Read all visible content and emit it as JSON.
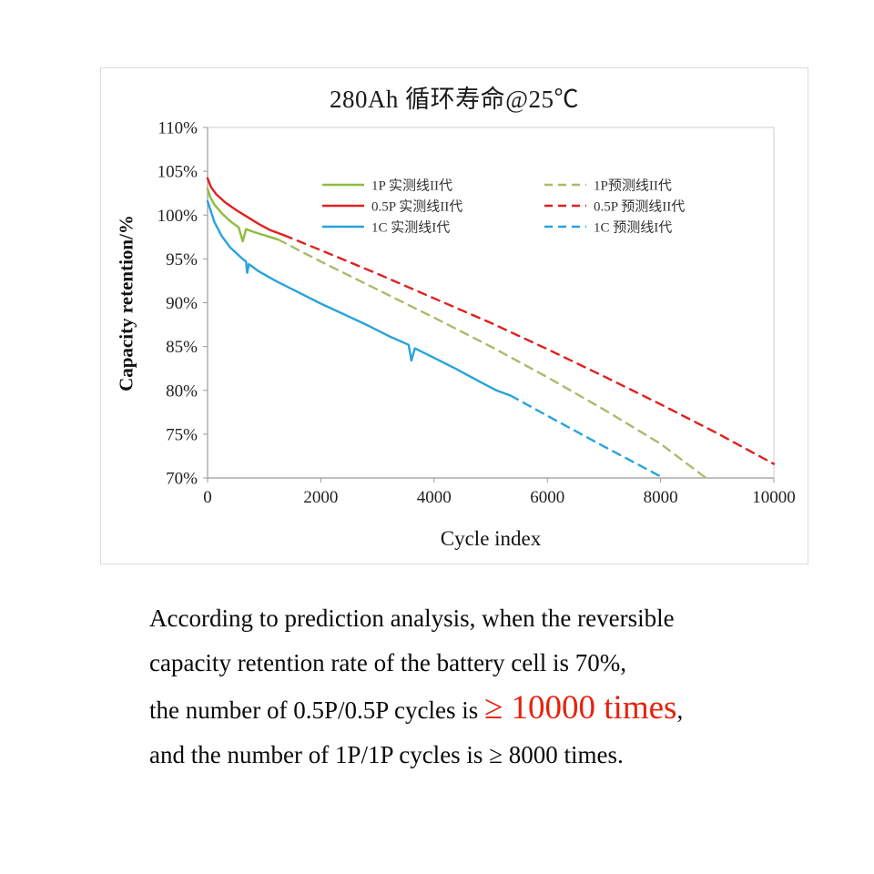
{
  "chart_data": {
    "type": "line",
    "title": "280Ah 循环寿命@25℃",
    "xlabel": "Cycle index",
    "ylabel": "Capacity retention/%",
    "xlim": [
      0,
      10000
    ],
    "ylim": [
      70,
      110
    ],
    "x_ticks": [
      0,
      2000,
      4000,
      6000,
      8000,
      10000
    ],
    "y_ticks": [
      70,
      75,
      80,
      85,
      90,
      95,
      100,
      105,
      110
    ],
    "y_tick_suffix": "%",
    "grid": false,
    "legend_position": "upper-center-two-columns",
    "series": [
      {
        "name": "1P 实测线II代",
        "color": "#8cbd3f",
        "dash": false,
        "points": [
          [
            0,
            103.0
          ],
          [
            50,
            102.0
          ],
          [
            120,
            101.2
          ],
          [
            250,
            100.2
          ],
          [
            400,
            99.3
          ],
          [
            550,
            98.6
          ],
          [
            620,
            97.0
          ],
          [
            680,
            98.4
          ],
          [
            800,
            98.1
          ],
          [
            1000,
            97.7
          ],
          [
            1250,
            97.2
          ]
        ]
      },
      {
        "name": "0.5P 实测线II代",
        "color": "#e02020",
        "dash": false,
        "points": [
          [
            0,
            104.2
          ],
          [
            60,
            103.2
          ],
          [
            150,
            102.4
          ],
          [
            300,
            101.5
          ],
          [
            500,
            100.6
          ],
          [
            700,
            99.8
          ],
          [
            900,
            99.0
          ],
          [
            1100,
            98.3
          ],
          [
            1350,
            97.7
          ]
        ]
      },
      {
        "name": "1C 实测线I代",
        "color": "#29a3dc",
        "dash": false,
        "points": [
          [
            0,
            101.6
          ],
          [
            50,
            100.6
          ],
          [
            120,
            99.2
          ],
          [
            250,
            97.6
          ],
          [
            400,
            96.3
          ],
          [
            600,
            95.1
          ],
          [
            680,
            94.7
          ],
          [
            700,
            93.4
          ],
          [
            730,
            94.4
          ],
          [
            900,
            93.6
          ],
          [
            1200,
            92.5
          ],
          [
            1600,
            91.2
          ],
          [
            2000,
            89.9
          ],
          [
            2400,
            88.7
          ],
          [
            2800,
            87.5
          ],
          [
            3200,
            86.2
          ],
          [
            3550,
            85.2
          ],
          [
            3600,
            83.4
          ],
          [
            3660,
            84.8
          ],
          [
            4000,
            83.7
          ],
          [
            4400,
            82.4
          ],
          [
            4800,
            81.0
          ],
          [
            5100,
            80.0
          ],
          [
            5350,
            79.4
          ]
        ]
      },
      {
        "name": "1P预测线II代",
        "color": "#a7bd6a",
        "dash": true,
        "points": [
          [
            1250,
            97.2
          ],
          [
            2000,
            94.7
          ],
          [
            3000,
            91.5
          ],
          [
            4000,
            88.3
          ],
          [
            5000,
            85.0
          ],
          [
            6000,
            81.5
          ],
          [
            7000,
            77.8
          ],
          [
            8000,
            73.9
          ],
          [
            8800,
            70.0
          ]
        ]
      },
      {
        "name": "0.5P 预测线II代",
        "color": "#e02020",
        "dash": true,
        "points": [
          [
            1350,
            97.7
          ],
          [
            2000,
            96.0
          ],
          [
            3000,
            93.3
          ],
          [
            4000,
            90.5
          ],
          [
            5000,
            87.7
          ],
          [
            6000,
            84.7
          ],
          [
            7000,
            81.6
          ],
          [
            8000,
            78.4
          ],
          [
            9000,
            75.1
          ],
          [
            10000,
            71.6
          ]
        ]
      },
      {
        "name": "1C 预测线I代",
        "color": "#29a3dc",
        "dash": true,
        "points": [
          [
            5350,
            79.4
          ],
          [
            6000,
            77.1
          ],
          [
            7000,
            73.6
          ],
          [
            8050,
            70.0
          ]
        ]
      }
    ],
    "legend": [
      {
        "label": "1P 实测线II代",
        "color": "#8cbd3f",
        "dash": false
      },
      {
        "label": "0.5P 实测线II代",
        "color": "#e02020",
        "dash": false
      },
      {
        "label": "1C 实测线I代",
        "color": "#29a3dc",
        "dash": false
      },
      {
        "label": "1P预测线II代",
        "color": "#a7bd6a",
        "dash": true
      },
      {
        "label": "0.5P 预测线II代",
        "color": "#e02020",
        "dash": true
      },
      {
        "label": "1C 预测线I代",
        "color": "#29a3dc",
        "dash": true
      }
    ]
  },
  "caption": {
    "line1": "According to prediction analysis, when the reversible",
    "line2": "capacity retention rate of the battery cell is 70%,",
    "line3_prefix": "the number of 0.5P/0.5P cycles is ",
    "line3_highlight": "≥ 10000 times",
    "line3_suffix": ",",
    "line4": "and the number of 1P/1P cycles is ≥ 8000 times.",
    "highlight_color": "#e8210c"
  }
}
